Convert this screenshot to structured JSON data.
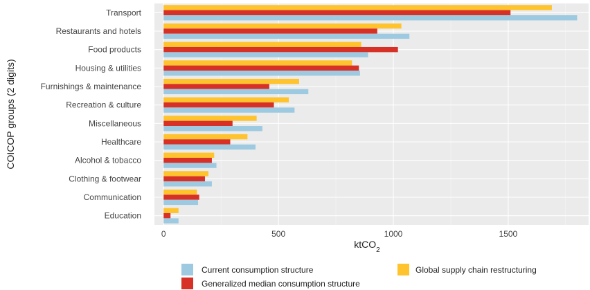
{
  "chart_data": {
    "type": "bar",
    "orientation": "horizontal",
    "xlabel": "ktCO",
    "xlabel_sub": "2",
    "ylabel": "COICOP groups (2 digits)",
    "xlim": [
      -40,
      1850
    ],
    "xticks": [
      0,
      500,
      1000,
      1500
    ],
    "grid": true,
    "legend_position": "bottom",
    "categories": [
      "Transport",
      "Restaurants and hotels",
      "Food products",
      "Housing & utilities",
      "Furnishings & maintenance",
      "Recreation & culture",
      "Miscellaneous",
      "Healthcare",
      "Alcohol & tobacco",
      "Clothing & footwear",
      "Communication",
      "Education"
    ],
    "series": [
      {
        "name": "Current consumption structure",
        "color": "#9ecae1",
        "values": [
          1800,
          1070,
          890,
          855,
          630,
          570,
          430,
          400,
          230,
          210,
          150,
          65
        ]
      },
      {
        "name": "Generalized median consumption structure",
        "color": "#d73027",
        "values": [
          1510,
          930,
          1020,
          850,
          460,
          480,
          300,
          290,
          210,
          180,
          155,
          30
        ]
      },
      {
        "name": "Global supply chain restructuring",
        "color": "#fec32d",
        "values": [
          1690,
          1035,
          860,
          820,
          590,
          545,
          405,
          365,
          220,
          195,
          145,
          65
        ]
      }
    ]
  }
}
